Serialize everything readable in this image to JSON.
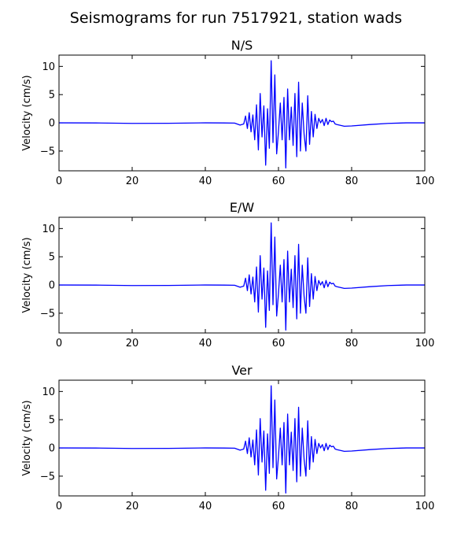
{
  "figure": {
    "title": "Seismograms for run 7517921, station wads",
    "line_color": "#0000ff"
  },
  "chart_data": [
    {
      "type": "line",
      "title": "N/S",
      "ylabel": "Velocity (cm/s)",
      "xlim": [
        0,
        100
      ],
      "ylim": [
        -8.5,
        12
      ],
      "xticks": [
        0,
        20,
        40,
        60,
        80,
        100
      ],
      "yticks": [
        -5,
        0,
        5,
        10
      ],
      "series": [
        {
          "x": [
            0,
            10,
            20,
            30,
            40,
            45,
            48,
            49.5,
            50.5,
            51,
            51.5,
            52,
            52.5,
            53,
            53.5,
            54,
            54.5,
            55,
            55.5,
            56,
            56.5,
            57,
            57.5,
            58,
            58.5,
            59,
            59.5,
            60,
            60.5,
            61,
            61.5,
            62,
            62.5,
            63,
            63.5,
            64,
            64.5,
            65,
            65.5,
            66,
            66.5,
            67,
            67.5,
            68,
            68.5,
            69,
            69.5,
            70,
            70.5,
            71,
            71.5,
            72,
            72.5,
            73,
            73.5,
            74,
            74.5,
            75,
            75.5,
            76,
            78,
            80,
            85,
            90,
            95,
            100
          ],
          "y": [
            0,
            -0.02,
            -0.1,
            -0.08,
            0,
            -0.02,
            -0.05,
            -0.4,
            -0.2,
            1.2,
            -1,
            1.8,
            -1.6,
            1.4,
            -3,
            3.2,
            -4.8,
            5.2,
            -2.5,
            3,
            -7.5,
            2.5,
            -4.5,
            11,
            -3.5,
            8.5,
            -5.5,
            -1.5,
            3.5,
            -3,
            4.5,
            -8,
            6,
            -3,
            2.8,
            -4,
            5.2,
            -6,
            7.2,
            -5,
            3.5,
            -2,
            -5,
            4.8,
            -3.8,
            2,
            -2.5,
            1.5,
            -1,
            0.8,
            0,
            0.6,
            -0.5,
            0.8,
            -0.3,
            0.5,
            0.2,
            0.3,
            -0.2,
            -0.3,
            -0.6,
            -0.55,
            -0.3,
            -0.1,
            0,
            0
          ]
        }
      ]
    },
    {
      "type": "line",
      "title": "E/W",
      "ylabel": "Velocity (cm/s)",
      "xlim": [
        0,
        100
      ],
      "ylim": [
        -8.5,
        12
      ],
      "xticks": [
        0,
        20,
        40,
        60,
        80,
        100
      ],
      "yticks": [
        -5,
        0,
        5,
        10
      ],
      "series": [
        {
          "x": [
            0,
            10,
            20,
            30,
            40,
            45,
            48,
            49.5,
            50.5,
            51,
            51.5,
            52,
            52.5,
            53,
            53.5,
            54,
            54.5,
            55,
            55.5,
            56,
            56.5,
            57,
            57.5,
            58,
            58.5,
            59,
            59.5,
            60,
            60.5,
            61,
            61.5,
            62,
            62.5,
            63,
            63.5,
            64,
            64.5,
            65,
            65.5,
            66,
            66.5,
            67,
            67.5,
            68,
            68.5,
            69,
            69.5,
            70,
            70.5,
            71,
            71.5,
            72,
            72.5,
            73,
            73.5,
            74,
            74.5,
            75,
            75.5,
            76,
            78,
            80,
            85,
            90,
            95,
            100
          ],
          "y": [
            0,
            -0.02,
            -0.1,
            -0.08,
            0,
            -0.02,
            -0.05,
            -0.4,
            -0.2,
            1.2,
            -1,
            1.8,
            -1.6,
            1.4,
            -3,
            3.2,
            -4.8,
            5.2,
            -2.5,
            3,
            -7.5,
            2.5,
            -4.5,
            11,
            -3.5,
            8.5,
            -5.5,
            -1.5,
            3.5,
            -3,
            4.5,
            -8,
            6,
            -3,
            2.8,
            -4,
            5.2,
            -6,
            7.2,
            -5,
            3.5,
            -2,
            -5,
            4.8,
            -3.8,
            2,
            -2.5,
            1.5,
            -1,
            0.8,
            0,
            0.6,
            -0.5,
            0.8,
            -0.3,
            0.5,
            0.2,
            0.3,
            -0.2,
            -0.3,
            -0.6,
            -0.55,
            -0.3,
            -0.1,
            0,
            0
          ]
        }
      ]
    },
    {
      "type": "line",
      "title": "Ver",
      "ylabel": "Velocity (cm/s)",
      "xlim": [
        0,
        100
      ],
      "ylim": [
        -8.5,
        12
      ],
      "xticks": [
        0,
        20,
        40,
        60,
        80,
        100
      ],
      "yticks": [
        -5,
        0,
        5,
        10
      ],
      "series": [
        {
          "x": [
            0,
            10,
            20,
            30,
            40,
            45,
            48,
            49.5,
            50.5,
            51,
            51.5,
            52,
            52.5,
            53,
            53.5,
            54,
            54.5,
            55,
            55.5,
            56,
            56.5,
            57,
            57.5,
            58,
            58.5,
            59,
            59.5,
            60,
            60.5,
            61,
            61.5,
            62,
            62.5,
            63,
            63.5,
            64,
            64.5,
            65,
            65.5,
            66,
            66.5,
            67,
            67.5,
            68,
            68.5,
            69,
            69.5,
            70,
            70.5,
            71,
            71.5,
            72,
            72.5,
            73,
            73.5,
            74,
            74.5,
            75,
            75.5,
            76,
            78,
            80,
            85,
            90,
            95,
            100
          ],
          "y": [
            0,
            -0.02,
            -0.1,
            -0.08,
            0,
            -0.02,
            -0.05,
            -0.4,
            -0.2,
            1.2,
            -1,
            1.8,
            -1.6,
            1.4,
            -3,
            3.2,
            -4.8,
            5.2,
            -2.5,
            3,
            -7.5,
            2.5,
            -4.5,
            11,
            -3.5,
            8.5,
            -5.5,
            -1.5,
            3.5,
            -3,
            4.5,
            -8,
            6,
            -3,
            2.8,
            -4,
            5.2,
            -6,
            7.2,
            -5,
            3.5,
            -2,
            -5,
            4.8,
            -3.8,
            2,
            -2.5,
            1.5,
            -1,
            0.8,
            0,
            0.6,
            -0.5,
            0.8,
            -0.3,
            0.5,
            0.2,
            0.3,
            -0.2,
            -0.3,
            -0.6,
            -0.55,
            -0.3,
            -0.1,
            0,
            0
          ]
        }
      ]
    }
  ]
}
